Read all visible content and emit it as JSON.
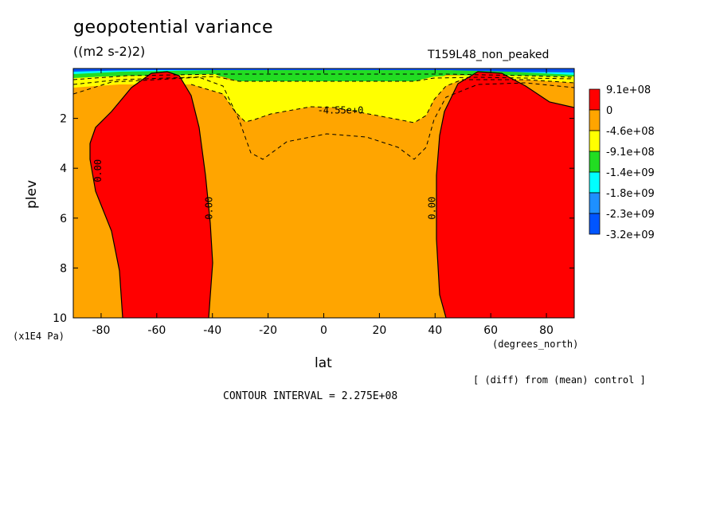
{
  "chart_data": {
    "type": "heatmap",
    "title": "geopotential variance",
    "units": "((m2 s-2)2)",
    "run_label": "T159L48_non_peaked",
    "xlabel": "lat",
    "x_units": "(degrees_north)",
    "ylabel": "plev",
    "y_units": "(x1E4 Pa)",
    "xlim": [
      -90,
      90
    ],
    "ylim": [
      10,
      0
    ],
    "x_ticks": [
      "-80",
      "-60",
      "-40",
      "-20",
      "0",
      "20",
      "40",
      "60",
      "80"
    ],
    "y_ticks": [
      "2",
      "4",
      "6",
      "8",
      "10"
    ],
    "legend": {
      "placement": "right",
      "levels": [
        "9.1e+08",
        "0",
        "-4.6e+08",
        "-9.1e+08",
        "-1.4e+09",
        "-1.8e+09",
        "-2.3e+09",
        "-3.2e+09"
      ],
      "colors": [
        "#ff0000",
        "#ffa500",
        "#ffff00",
        "#22dd22",
        "#00ffff",
        "#1e90ff",
        "#0055ff"
      ]
    },
    "contour_labels": [
      {
        "text": "0.00",
        "lat": -80,
        "plev": 4.1
      },
      {
        "text": "0.00",
        "lat": -40,
        "plev": 5.6
      },
      {
        "text": "0.00",
        "lat": 40,
        "plev": 5.6
      },
      {
        "text": "-4.55e+0",
        "lat": 6,
        "plev": 1.8
      }
    ],
    "footer": "[ (diff) from (mean) control ]",
    "contour_interval": "CONTOUR INTERVAL = 2.275E+08"
  }
}
